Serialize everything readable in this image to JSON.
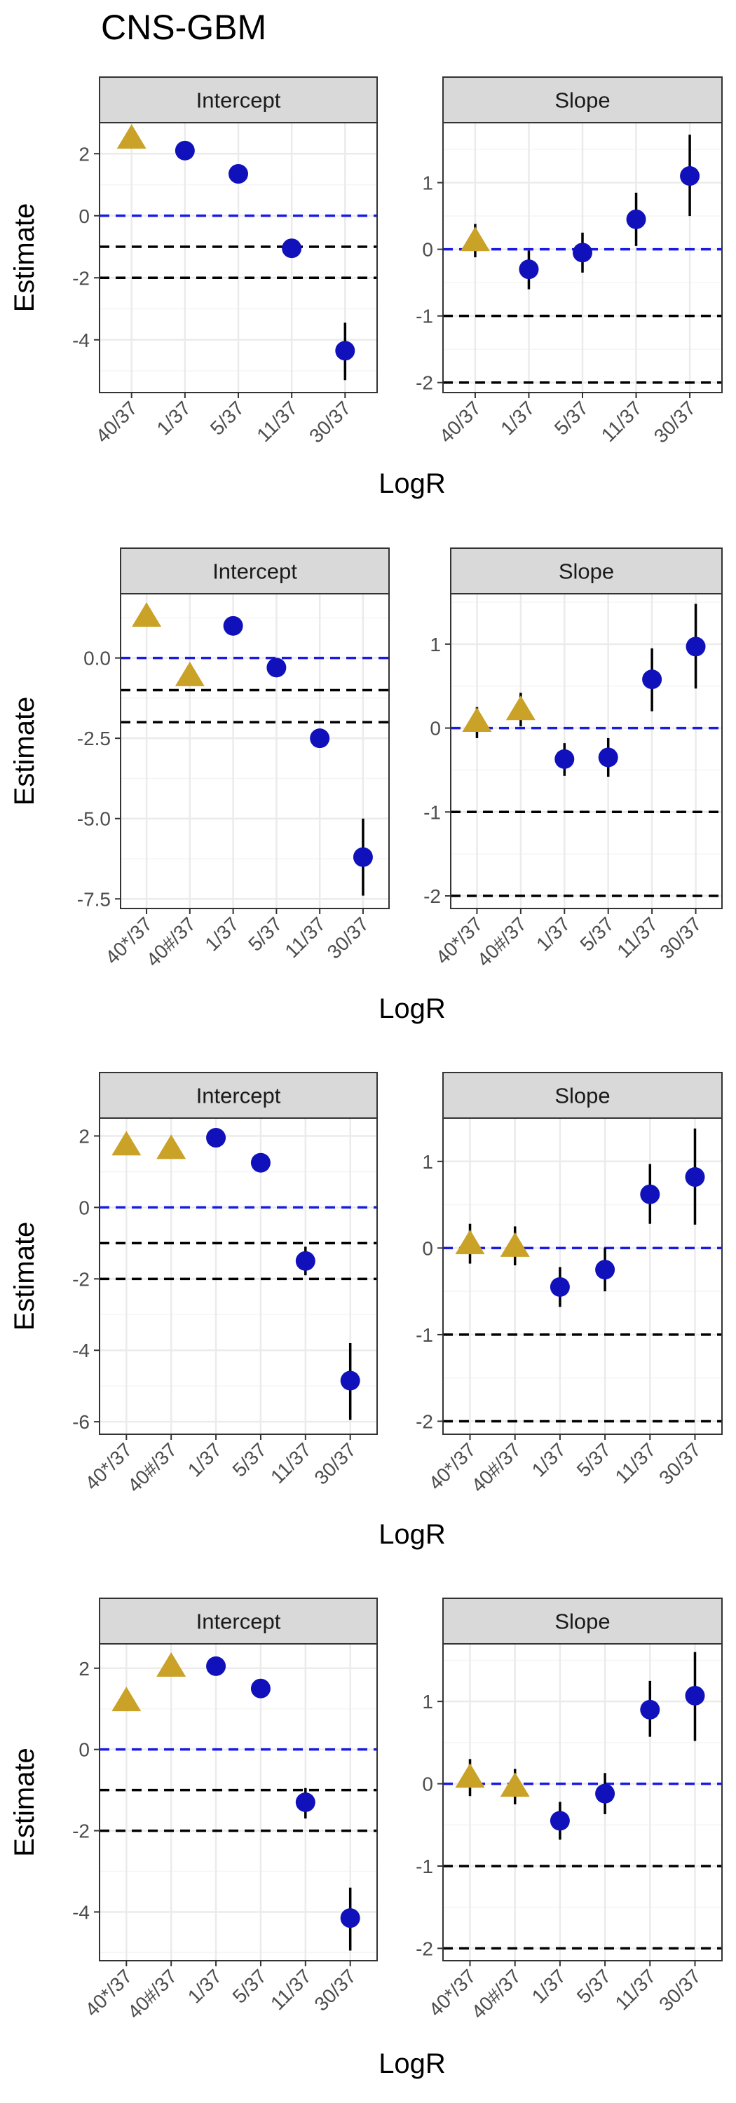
{
  "figure_title": "CNS-GBM",
  "colors": {
    "ref_triangle": "#C9A227",
    "point": "#1111BB",
    "zero_line": "#1A1AE6",
    "threshold_line": "#000000",
    "strip_fill": "#D9D9D9",
    "grid_major": "#EBEBEB",
    "grid_minor": "#F5F5F5"
  },
  "chart_data": [
    {
      "type": "scatter",
      "xlabel": "LogR",
      "facets": [
        {
          "strip": "Intercept",
          "ylabel": "Estimate",
          "categories": [
            "40/37",
            "1/37",
            "5/37",
            "11/37",
            "30/37"
          ],
          "ylim": [
            -5.7,
            3.0
          ],
          "yticks": [
            -4,
            -2,
            0,
            2
          ],
          "points": [
            {
              "x": "40/37",
              "y": 2.5,
              "shape": "triangle"
            },
            {
              "x": "1/37",
              "y": 2.1,
              "shape": "circle"
            },
            {
              "x": "5/37",
              "y": 1.35,
              "shape": "circle"
            },
            {
              "x": "11/37",
              "y": -1.05,
              "lo": -1.3,
              "hi": -0.8,
              "shape": "circle"
            },
            {
              "x": "30/37",
              "y": -4.35,
              "lo": -5.3,
              "hi": -3.45,
              "shape": "circle"
            }
          ],
          "hlines": [
            {
              "y": 0,
              "style": "zero"
            },
            {
              "y": -1,
              "style": "threshold"
            },
            {
              "y": -2,
              "style": "threshold"
            }
          ]
        },
        {
          "strip": "Slope",
          "ylabel": "",
          "categories": [
            "40/37",
            "1/37",
            "5/37",
            "11/37",
            "30/37"
          ],
          "ylim": [
            -2.15,
            1.9
          ],
          "yticks": [
            -2,
            -1,
            0,
            1
          ],
          "points": [
            {
              "x": "40/37",
              "y": 0.13,
              "lo": -0.12,
              "hi": 0.38,
              "shape": "triangle"
            },
            {
              "x": "1/37",
              "y": -0.3,
              "lo": -0.6,
              "hi": -0.02,
              "shape": "circle"
            },
            {
              "x": "5/37",
              "y": -0.05,
              "lo": -0.35,
              "hi": 0.25,
              "shape": "circle"
            },
            {
              "x": "11/37",
              "y": 0.45,
              "lo": 0.05,
              "hi": 0.85,
              "shape": "circle"
            },
            {
              "x": "30/37",
              "y": 1.1,
              "lo": 0.5,
              "hi": 1.72,
              "shape": "circle"
            }
          ],
          "hlines": [
            {
              "y": 0,
              "style": "zero"
            },
            {
              "y": -1,
              "style": "threshold"
            },
            {
              "y": -2,
              "style": "threshold"
            }
          ]
        }
      ]
    },
    {
      "type": "scatter",
      "xlabel": "LogR",
      "facets": [
        {
          "strip": "Intercept",
          "ylabel": "Estimate",
          "categories": [
            "40*/37",
            "40#/37",
            "1/37",
            "5/37",
            "11/37",
            "30/37"
          ],
          "ylim": [
            -7.8,
            2.0
          ],
          "yticks": [
            -7.5,
            -5.0,
            -2.5,
            0.0
          ],
          "tick_decimals": 1,
          "points": [
            {
              "x": "40*/37",
              "y": 1.3,
              "shape": "triangle"
            },
            {
              "x": "40#/37",
              "y": -0.55,
              "shape": "triangle"
            },
            {
              "x": "1/37",
              "y": 1.0,
              "shape": "circle"
            },
            {
              "x": "5/37",
              "y": -0.3,
              "shape": "circle"
            },
            {
              "x": "11/37",
              "y": -2.5,
              "lo": -2.8,
              "hi": -2.2,
              "shape": "circle"
            },
            {
              "x": "30/37",
              "y": -6.2,
              "lo": -7.4,
              "hi": -5.0,
              "shape": "circle"
            }
          ],
          "hlines": [
            {
              "y": 0,
              "style": "zero"
            },
            {
              "y": -1,
              "style": "threshold"
            },
            {
              "y": -2,
              "style": "threshold"
            }
          ]
        },
        {
          "strip": "Slope",
          "ylabel": "",
          "categories": [
            "40*/37",
            "40#/37",
            "1/37",
            "5/37",
            "11/37",
            "30/37"
          ],
          "ylim": [
            -2.15,
            1.6
          ],
          "yticks": [
            -2,
            -1,
            0,
            1
          ],
          "points": [
            {
              "x": "40*/37",
              "y": 0.08,
              "lo": -0.12,
              "hi": 0.25,
              "shape": "triangle"
            },
            {
              "x": "40#/37",
              "y": 0.22,
              "lo": 0.02,
              "hi": 0.42,
              "shape": "triangle"
            },
            {
              "x": "1/37",
              "y": -0.37,
              "lo": -0.57,
              "hi": -0.18,
              "shape": "circle"
            },
            {
              "x": "5/37",
              "y": -0.35,
              "lo": -0.58,
              "hi": -0.12,
              "shape": "circle"
            },
            {
              "x": "11/37",
              "y": 0.58,
              "lo": 0.2,
              "hi": 0.95,
              "shape": "circle"
            },
            {
              "x": "30/37",
              "y": 0.97,
              "lo": 0.47,
              "hi": 1.48,
              "shape": "circle"
            }
          ],
          "hlines": [
            {
              "y": 0,
              "style": "zero"
            },
            {
              "y": -1,
              "style": "threshold"
            },
            {
              "y": -2,
              "style": "threshold"
            }
          ]
        }
      ]
    },
    {
      "type": "scatter",
      "xlabel": "LogR",
      "facets": [
        {
          "strip": "Intercept",
          "ylabel": "Estimate",
          "categories": [
            "40*/37",
            "40#/37",
            "1/37",
            "5/37",
            "11/37",
            "30/37"
          ],
          "ylim": [
            -6.35,
            2.5
          ],
          "yticks": [
            -6,
            -4,
            -2,
            0,
            2
          ],
          "points": [
            {
              "x": "40*/37",
              "y": 1.75,
              "shape": "triangle"
            },
            {
              "x": "40#/37",
              "y": 1.65,
              "shape": "triangle"
            },
            {
              "x": "1/37",
              "y": 1.95,
              "shape": "circle"
            },
            {
              "x": "5/37",
              "y": 1.25,
              "shape": "circle"
            },
            {
              "x": "11/37",
              "y": -1.5,
              "lo": -1.9,
              "hi": -1.1,
              "shape": "circle"
            },
            {
              "x": "30/37",
              "y": -4.85,
              "lo": -5.95,
              "hi": -3.8,
              "shape": "circle"
            }
          ],
          "hlines": [
            {
              "y": 0,
              "style": "zero"
            },
            {
              "y": -1,
              "style": "threshold"
            },
            {
              "y": -2,
              "style": "threshold"
            }
          ]
        },
        {
          "strip": "Slope",
          "ylabel": "",
          "categories": [
            "40*/37",
            "40#/37",
            "1/37",
            "5/37",
            "11/37",
            "30/37"
          ],
          "ylim": [
            -2.15,
            1.5
          ],
          "yticks": [
            -2,
            -1,
            0,
            1
          ],
          "points": [
            {
              "x": "40*/37",
              "y": 0.05,
              "lo": -0.18,
              "hi": 0.28,
              "shape": "triangle"
            },
            {
              "x": "40#/37",
              "y": 0.02,
              "lo": -0.2,
              "hi": 0.25,
              "shape": "triangle"
            },
            {
              "x": "1/37",
              "y": -0.45,
              "lo": -0.68,
              "hi": -0.22,
              "shape": "circle"
            },
            {
              "x": "5/37",
              "y": -0.25,
              "lo": -0.5,
              "hi": 0.0,
              "shape": "circle"
            },
            {
              "x": "11/37",
              "y": 0.62,
              "lo": 0.28,
              "hi": 0.97,
              "shape": "circle"
            },
            {
              "x": "30/37",
              "y": 0.82,
              "lo": 0.27,
              "hi": 1.38,
              "shape": "circle"
            }
          ],
          "hlines": [
            {
              "y": 0,
              "style": "zero"
            },
            {
              "y": -1,
              "style": "threshold"
            },
            {
              "y": -2,
              "style": "threshold"
            }
          ]
        }
      ]
    },
    {
      "type": "scatter",
      "xlabel": "LogR",
      "facets": [
        {
          "strip": "Intercept",
          "ylabel": "Estimate",
          "categories": [
            "40*/37",
            "40#/37",
            "1/37",
            "5/37",
            "11/37",
            "30/37"
          ],
          "ylim": [
            -5.2,
            2.6
          ],
          "yticks": [
            -4,
            -2,
            0,
            2
          ],
          "points": [
            {
              "x": "40*/37",
              "y": 1.2,
              "shape": "triangle"
            },
            {
              "x": "40#/37",
              "y": 2.05,
              "shape": "triangle"
            },
            {
              "x": "1/37",
              "y": 2.05,
              "shape": "circle"
            },
            {
              "x": "5/37",
              "y": 1.5,
              "shape": "circle"
            },
            {
              "x": "11/37",
              "y": -1.3,
              "lo": -1.7,
              "hi": -0.95,
              "shape": "circle"
            },
            {
              "x": "30/37",
              "y": -4.15,
              "lo": -4.95,
              "hi": -3.4,
              "shape": "circle"
            }
          ],
          "hlines": [
            {
              "y": 0,
              "style": "zero"
            },
            {
              "y": -1,
              "style": "threshold"
            },
            {
              "y": -2,
              "style": "threshold"
            }
          ]
        },
        {
          "strip": "Slope",
          "ylabel": "",
          "categories": [
            "40*/37",
            "40#/37",
            "1/37",
            "5/37",
            "11/37",
            "30/37"
          ],
          "ylim": [
            -2.15,
            1.7
          ],
          "yticks": [
            -2,
            -1,
            0,
            1
          ],
          "points": [
            {
              "x": "40*/37",
              "y": 0.08,
              "lo": -0.15,
              "hi": 0.3,
              "shape": "triangle"
            },
            {
              "x": "40#/37",
              "y": -0.03,
              "lo": -0.25,
              "hi": 0.18,
              "shape": "triangle"
            },
            {
              "x": "1/37",
              "y": -0.45,
              "lo": -0.68,
              "hi": -0.22,
              "shape": "circle"
            },
            {
              "x": "5/37",
              "y": -0.12,
              "lo": -0.37,
              "hi": 0.13,
              "shape": "circle"
            },
            {
              "x": "11/37",
              "y": 0.9,
              "lo": 0.57,
              "hi": 1.25,
              "shape": "circle"
            },
            {
              "x": "30/37",
              "y": 1.07,
              "lo": 0.52,
              "hi": 1.6,
              "shape": "circle"
            }
          ],
          "hlines": [
            {
              "y": 0,
              "style": "zero"
            },
            {
              "y": -1,
              "style": "threshold"
            },
            {
              "y": -2,
              "style": "threshold"
            }
          ]
        }
      ]
    }
  ]
}
